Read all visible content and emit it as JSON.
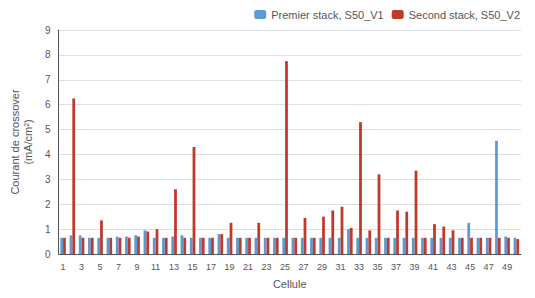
{
  "chart_data": {
    "type": "bar",
    "xlabel": "Cellule",
    "ylabel": "Courant de crossover\n(mA/cm²)",
    "categories": [
      "1",
      null,
      "3",
      null,
      "5",
      null,
      "7",
      null,
      "9",
      null,
      "11",
      null,
      "13",
      null,
      "15",
      null,
      "17",
      null,
      "19",
      null,
      "21",
      null,
      "23",
      null,
      "25",
      null,
      "27",
      null,
      "29",
      null,
      "31",
      null,
      "33",
      null,
      "35",
      null,
      "37",
      null,
      "39",
      null,
      "41",
      null,
      "43",
      null,
      "45",
      null,
      "47",
      null,
      "49",
      null
    ],
    "series": [
      {
        "name": "Premier stack, S50_V1",
        "color": "#5b9bd5",
        "values": [
          0.65,
          0.75,
          0.75,
          0.65,
          0.65,
          0.65,
          0.7,
          0.7,
          0.75,
          0.95,
          0.65,
          0.65,
          0.7,
          0.75,
          0.65,
          0.65,
          0.65,
          0.8,
          0.65,
          0.65,
          0.65,
          0.65,
          0.65,
          0.65,
          0.65,
          0.65,
          0.65,
          0.65,
          0.65,
          0.65,
          0.65,
          1.0,
          0.65,
          0.65,
          0.65,
          0.65,
          0.65,
          0.65,
          0.65,
          0.65,
          0.65,
          0.65,
          0.65,
          0.65,
          1.25,
          0.65,
          0.65,
          4.55,
          0.7,
          0.65
        ]
      },
      {
        "name": "Second stack, S50_V2",
        "color": "#c0392b",
        "values": [
          0.65,
          6.25,
          0.65,
          0.65,
          1.35,
          0.65,
          0.65,
          0.65,
          0.7,
          0.9,
          1.0,
          0.65,
          2.6,
          0.65,
          4.3,
          0.65,
          0.65,
          0.8,
          1.25,
          0.65,
          0.65,
          1.25,
          0.65,
          0.65,
          7.75,
          0.65,
          1.45,
          0.65,
          1.5,
          1.75,
          1.9,
          1.05,
          5.3,
          0.95,
          3.2,
          0.65,
          1.75,
          1.7,
          3.35,
          0.65,
          1.2,
          1.1,
          0.95,
          0.65,
          0.65,
          0.65,
          0.65,
          0.65,
          0.65,
          0.6
        ]
      }
    ],
    "ylim": [
      0,
      9
    ],
    "yticks": [
      0,
      1,
      2,
      3,
      4,
      5,
      6,
      7,
      8,
      9
    ],
    "grid": true,
    "legend": "upper right"
  }
}
